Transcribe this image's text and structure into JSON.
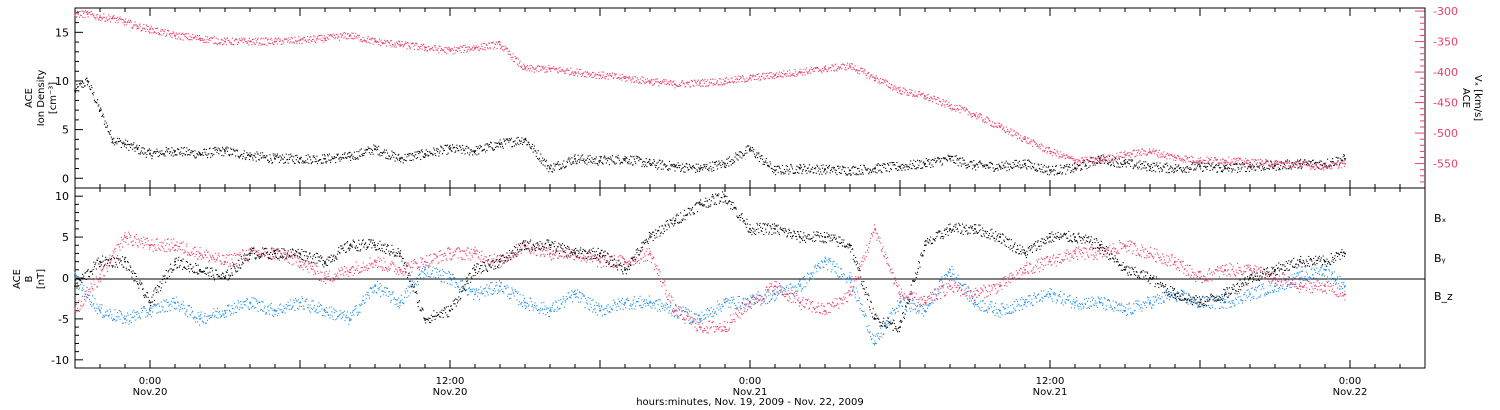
{
  "colors": {
    "black": "#000000",
    "pink": "#e8406a",
    "blue": "#1f8ee8"
  },
  "xaxis": {
    "title": "hours:minutes, Nov. 19, 2009 - Nov. 22, 2009",
    "range_hours": [
      -3,
      51
    ],
    "ticks": [
      {
        "h": 0,
        "time": "0:00",
        "date": "Nov.20"
      },
      {
        "h": 12,
        "time": "12:00",
        "date": "Nov.20"
      },
      {
        "h": 24,
        "time": "0:00",
        "date": "Nov.21"
      },
      {
        "h": 36,
        "time": "12:00",
        "date": "Nov.21"
      },
      {
        "h": 48,
        "time": "0:00",
        "date": "Nov.22"
      }
    ]
  },
  "panel_top": {
    "left_label": [
      "ACE",
      "Ion Density",
      "[cm⁻³]"
    ],
    "left_ticks": [
      "0",
      "5",
      "10",
      "15"
    ],
    "right_label": [
      "ACE",
      "Vₓ [km/s]"
    ],
    "right_ticks": [
      "-300",
      "-350",
      "-400",
      "-450",
      "-500",
      "-550"
    ]
  },
  "panel_bottom": {
    "left_label": [
      "ACE",
      "B",
      "[nT]"
    ],
    "left_ticks": [
      "10",
      "5",
      "0",
      "-5",
      "-10"
    ],
    "legend": [
      {
        "name": "Bₓ",
        "color": "#000000"
      },
      {
        "name": "Bᵧ",
        "color": "#1f8ee8"
      },
      {
        "name": "B_z",
        "color": "#e8406a"
      }
    ]
  },
  "chart_data": [
    {
      "type": "scatter",
      "title": "",
      "xlabel": "hours:minutes, Nov. 19, 2009 - Nov. 22, 2009",
      "ylabel": "ACE Ion Density [cm⁻³]",
      "ylim": [
        -1,
        17.5
      ],
      "y2label": "ACE Vₓ [km/s]",
      "y2lim": [
        -590,
        -295
      ],
      "series": [
        {
          "name": "",
          "axis": "left",
          "color": "#000000",
          "x": [
            -3,
            -2.5,
            -2.0,
            -1.5,
            -1.0,
            -0.5,
            0,
            1,
            2,
            3,
            4,
            5,
            6,
            7,
            8,
            9,
            10,
            11,
            12,
            13,
            14,
            15,
            16,
            17,
            18,
            19,
            20,
            21,
            22,
            23,
            24,
            25,
            26,
            27,
            28,
            29,
            30,
            31,
            32,
            33,
            34,
            35,
            36,
            37,
            38,
            39,
            40,
            41,
            42,
            43,
            44,
            45,
            46,
            47,
            47.8
          ],
          "values": [
            9,
            10,
            7,
            4,
            3.5,
            3,
            2.5,
            2.8,
            2.5,
            2.8,
            2.3,
            2.0,
            2.0,
            2.0,
            2.2,
            3.0,
            2.0,
            2.5,
            3.0,
            2.8,
            3.5,
            4.0,
            1.0,
            2.0,
            1.8,
            2.0,
            1.5,
            1.2,
            1.0,
            1.5,
            3.0,
            0.8,
            1.0,
            0.9,
            0.8,
            1.0,
            1.2,
            1.5,
            2.0,
            1.3,
            1.2,
            1.5,
            0.8,
            1.0,
            2.0,
            1.5,
            1.2,
            1.0,
            1.2,
            1.0,
            1.2,
            1.3,
            1.5,
            1.5,
            2.0
          ]
        },
        {
          "name": "",
          "axis": "right",
          "color": "#e8406a",
          "x": [
            -3,
            -2.5,
            -2.0,
            -1.5,
            -1.0,
            -0.5,
            0,
            1,
            2,
            3,
            4,
            5,
            6,
            7,
            8,
            9,
            10,
            11,
            12,
            13,
            14,
            15,
            16,
            17,
            18,
            19,
            20,
            21,
            22,
            23,
            24,
            25,
            26,
            27,
            28,
            29,
            30,
            31,
            32,
            33,
            34,
            35,
            36,
            37,
            38,
            39,
            40,
            41,
            42,
            43,
            44,
            45,
            46,
            47,
            47.8
          ],
          "values": [
            -305,
            -305,
            -310,
            -312,
            -318,
            -325,
            -330,
            -340,
            -345,
            -350,
            -350,
            -350,
            -348,
            -345,
            -340,
            -350,
            -355,
            -360,
            -365,
            -360,
            -355,
            -395,
            -395,
            -400,
            -405,
            -410,
            -415,
            -420,
            -418,
            -415,
            -410,
            -405,
            -400,
            -395,
            -390,
            -410,
            -430,
            -440,
            -455,
            -470,
            -490,
            -510,
            -530,
            -545,
            -545,
            -535,
            -530,
            -540,
            -545,
            -545,
            -548,
            -550,
            -552,
            -555,
            -550
          ]
        }
      ]
    },
    {
      "type": "scatter",
      "title": "",
      "xlabel": "hours:minutes, Nov. 19, 2009 - Nov. 22, 2009",
      "ylabel": "ACE B [nT]",
      "ylim": [
        -11,
        11
      ],
      "series": [
        {
          "name": "Bₓ",
          "color": "#000000",
          "x": [
            -3,
            -2,
            -1,
            0,
            1,
            2,
            3,
            4,
            5,
            6,
            7,
            8,
            9,
            10,
            11,
            12,
            13,
            14,
            15,
            16,
            17,
            18,
            19,
            20,
            21,
            22,
            23,
            24,
            25,
            26,
            27,
            28,
            29,
            30,
            31,
            32,
            33,
            34,
            35,
            36,
            37,
            38,
            39,
            40,
            41,
            42,
            43,
            44,
            45,
            46,
            47,
            47.8
          ],
          "values": [
            -1,
            2,
            2,
            -3,
            2,
            1,
            0,
            3,
            3,
            3,
            2,
            4,
            4,
            3,
            -5,
            -4,
            1,
            2,
            4,
            4,
            3,
            3,
            1,
            5,
            7,
            9,
            10,
            6,
            6,
            5,
            5,
            4,
            -5,
            -6,
            4,
            6,
            6,
            5,
            3,
            5,
            5,
            4,
            1,
            0,
            -2,
            -3,
            -2,
            0,
            1,
            2,
            2,
            3
          ]
        },
        {
          "name": "Bᵧ",
          "color": "#1f8ee8",
          "x": [
            -3,
            -2,
            -1,
            0,
            1,
            2,
            3,
            4,
            5,
            6,
            7,
            8,
            9,
            10,
            11,
            12,
            13,
            14,
            15,
            16,
            17,
            18,
            19,
            20,
            21,
            22,
            23,
            24,
            25,
            26,
            27,
            28,
            29,
            30,
            31,
            32,
            33,
            34,
            35,
            36,
            37,
            38,
            39,
            40,
            41,
            42,
            43,
            44,
            45,
            46,
            47,
            47.8
          ],
          "values": [
            0,
            -4,
            -5,
            -4,
            -3,
            -5,
            -4,
            -3,
            -4,
            -3,
            -4,
            -5,
            -1,
            -3,
            1,
            0,
            -2,
            -1,
            -3,
            -4,
            -2,
            -4,
            -3,
            -3,
            -4,
            -5,
            -3,
            -3,
            -2,
            -1,
            2,
            0,
            -8,
            -3,
            -4,
            1,
            -3,
            -4,
            -3,
            -2,
            -3,
            -3,
            -4,
            -3,
            -2,
            -3,
            -3,
            -2,
            -1,
            0,
            1,
            -1
          ]
        },
        {
          "name": "B_z",
          "color": "#e8406a",
          "x": [
            -3,
            -2,
            -1,
            0,
            1,
            2,
            3,
            4,
            5,
            6,
            7,
            8,
            9,
            10,
            11,
            12,
            13,
            14,
            15,
            16,
            17,
            18,
            19,
            20,
            21,
            22,
            23,
            24,
            25,
            26,
            27,
            28,
            29,
            30,
            31,
            32,
            33,
            34,
            35,
            36,
            37,
            38,
            39,
            40,
            41,
            42,
            43,
            44,
            45,
            46,
            47,
            47.8
          ],
          "values": [
            -4,
            0,
            5,
            4,
            4,
            3,
            2,
            3,
            3,
            2,
            0,
            1,
            2,
            1,
            2,
            3,
            3,
            2,
            4,
            3,
            3,
            2,
            2,
            3,
            -4,
            -6,
            -6,
            -3,
            -1,
            -3,
            -4,
            -2,
            6,
            -2,
            -3,
            -1,
            -2,
            -1,
            1,
            2,
            3,
            3,
            4,
            3,
            2,
            0,
            1,
            1,
            0,
            -1,
            -1,
            -2
          ]
        }
      ]
    }
  ]
}
